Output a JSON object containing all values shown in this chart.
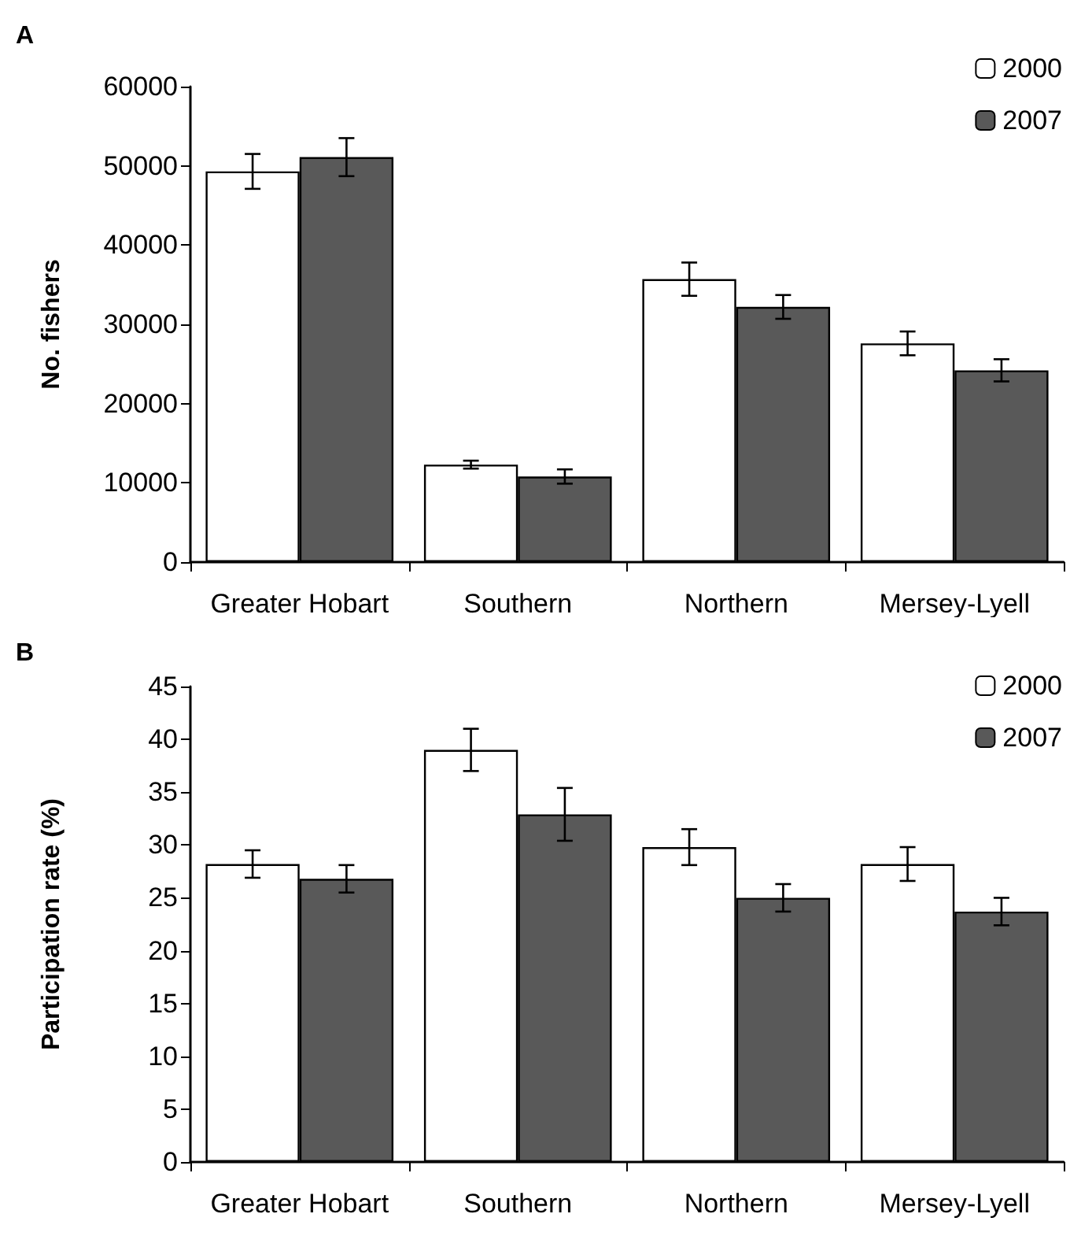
{
  "chart_data": [
    {
      "type": "bar",
      "title": "A",
      "ylabel": "No. fishers",
      "categories": [
        "Greater Hobart",
        "Southern",
        "Northern",
        "Mersey-Lyell"
      ],
      "series": [
        {
          "name": "2000",
          "color": "#ffffff",
          "values": [
            49300,
            12300,
            35700,
            27600
          ],
          "errors": [
            2200,
            500,
            2100,
            1500
          ]
        },
        {
          "name": "2007",
          "color": "#595959",
          "values": [
            51100,
            10800,
            32200,
            24200
          ],
          "errors": [
            2400,
            900,
            1500,
            1400
          ]
        }
      ],
      "ylim": [
        0,
        60000
      ],
      "yticks": [
        0,
        10000,
        20000,
        30000,
        40000,
        50000,
        60000
      ],
      "grid": false,
      "legend": "top right"
    },
    {
      "type": "bar",
      "title": "B",
      "ylabel": "Participation rate (%)",
      "categories": [
        "Greater Hobart",
        "Southern",
        "Northern",
        "Mersey-Lyell"
      ],
      "series": [
        {
          "name": "2000",
          "color": "#ffffff",
          "values": [
            28.2,
            39.0,
            29.8,
            28.2
          ],
          "errors": [
            1.3,
            2.0,
            1.7,
            1.6
          ]
        },
        {
          "name": "2007",
          "color": "#595959",
          "values": [
            26.8,
            32.9,
            25.0,
            23.7
          ],
          "errors": [
            1.3,
            2.5,
            1.3,
            1.3
          ]
        }
      ],
      "ylim": [
        0,
        45
      ],
      "yticks": [
        0,
        5,
        10,
        15,
        20,
        25,
        30,
        35,
        40,
        45
      ],
      "grid": false,
      "legend": "top right"
    }
  ]
}
